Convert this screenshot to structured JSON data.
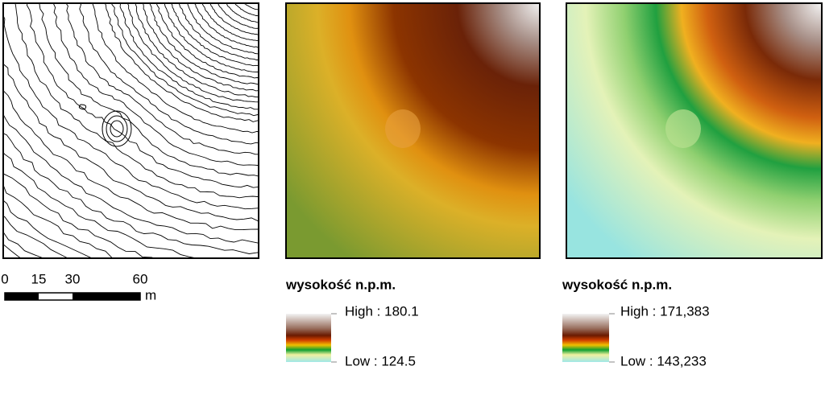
{
  "scale_bar": {
    "labels": [
      "0",
      "15",
      "30",
      "60"
    ],
    "unit": "m"
  },
  "legends": [
    {
      "title": "wysokość n.p.m.",
      "high": "High : 180.1",
      "low": "Low : 124.5"
    },
    {
      "title": "wysokość n.p.m.",
      "high": "High : 171,383",
      "low": "Low : 143,233"
    }
  ]
}
